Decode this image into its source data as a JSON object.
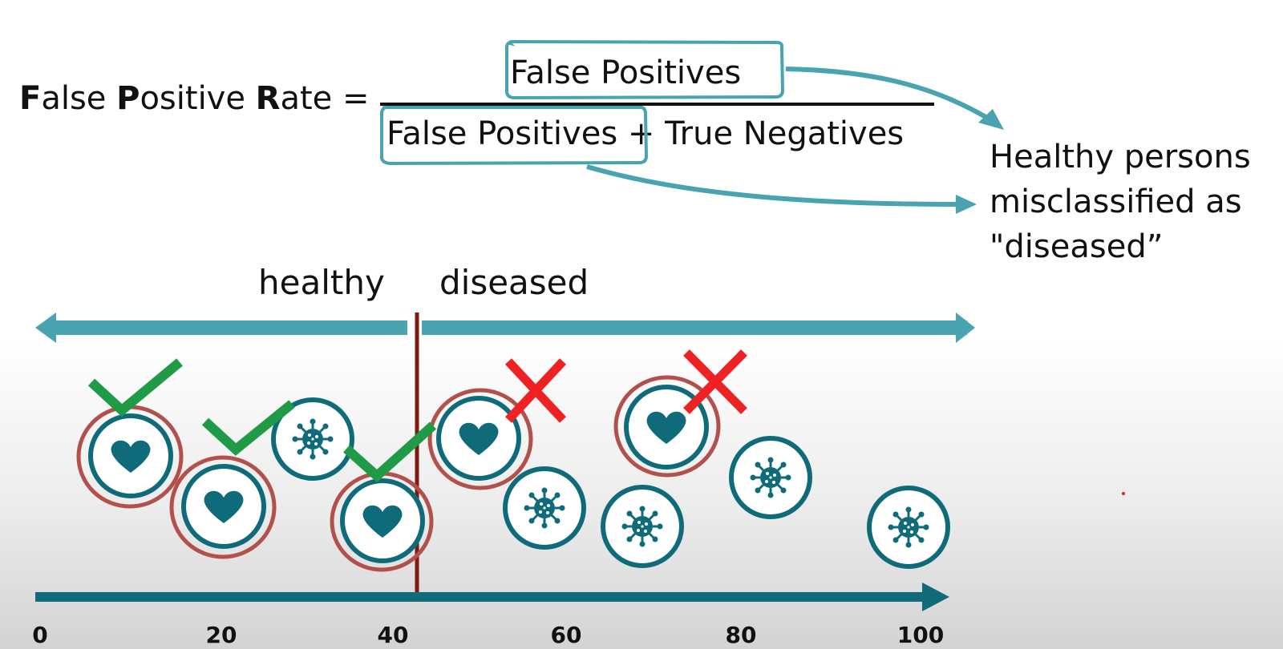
{
  "formula": {
    "lhs_parts": [
      {
        "bold": "F",
        "rest": "alse "
      },
      {
        "bold": "P",
        "rest": "ositive "
      },
      {
        "bold": "R",
        "rest": "ate ="
      }
    ],
    "numerator": "False Positives",
    "denominator_term1": "False Positives",
    "denominator_term2": " + True Negatives"
  },
  "annotation": {
    "lines": [
      "Healthy persons",
      "misclassified as",
      "\"diseased”"
    ]
  },
  "regions": {
    "healthy": "healthy",
    "diseased": "diseased"
  },
  "axis": {
    "ticks": [
      "0",
      "20",
      "40",
      "60",
      "80",
      "100"
    ]
  },
  "colors": {
    "teal": "#0f6b7a",
    "light_teal": "#4aa3b0",
    "threshold": "#7d1a12",
    "check": "#1f9a47",
    "cross": "#ee2222",
    "highlight_ring": "#b2504b"
  },
  "people": [
    {
      "kind": "healthy",
      "value": 10,
      "classified": "healthy",
      "mark": "check"
    },
    {
      "kind": "healthy",
      "value": 22,
      "classified": "healthy",
      "mark": "check"
    },
    {
      "kind": "diseased",
      "value": 31
    },
    {
      "kind": "healthy",
      "value": 40,
      "classified": "healthy",
      "mark": "check"
    },
    {
      "kind": "healthy",
      "value": 50,
      "classified": "diseased",
      "mark": "cross"
    },
    {
      "kind": "diseased",
      "value": 58
    },
    {
      "kind": "healthy",
      "value": 70,
      "classified": "diseased",
      "mark": "cross"
    },
    {
      "kind": "diseased",
      "value": 70
    },
    {
      "kind": "diseased",
      "value": 84
    },
    {
      "kind": "diseased",
      "value": 100
    }
  ],
  "icons": [
    "heart-icon",
    "virus-icon",
    "check-icon",
    "cross-icon"
  ]
}
